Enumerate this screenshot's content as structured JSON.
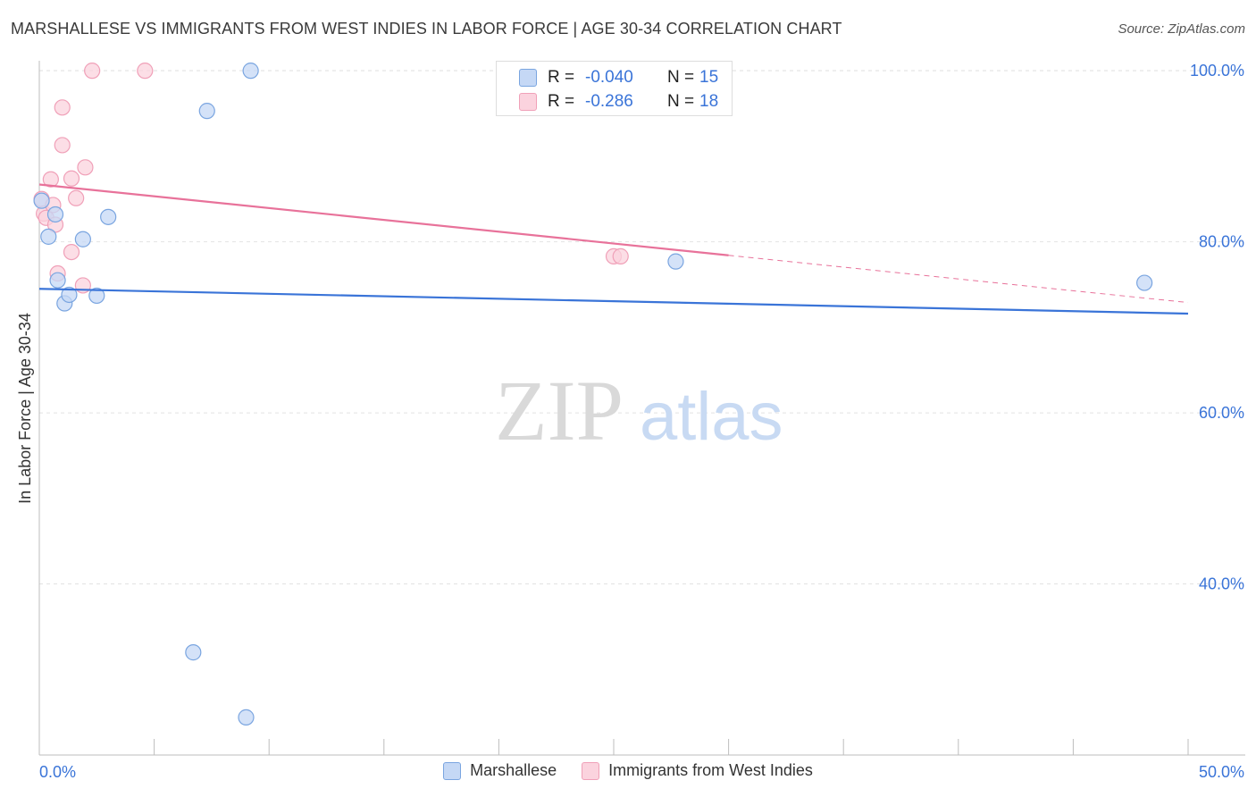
{
  "title": "MARSHALLESE VS IMMIGRANTS FROM WEST INDIES IN LABOR FORCE | AGE 30-34 CORRELATION CHART",
  "source": "Source: ZipAtlas.com",
  "watermark": {
    "zip": "ZIP",
    "atlas": "atlas"
  },
  "stats": [
    {
      "r_label": "R =",
      "r_value": "-0.040",
      "n_label": "N =",
      "n_value": "15",
      "color": "#c5d8f5"
    },
    {
      "r_label": "R =",
      "r_value": "-0.286",
      "n_label": "N =",
      "n_value": "18",
      "color": "#fbd3de"
    }
  ],
  "legend": [
    {
      "label": "Marshallese"
    },
    {
      "label": "Immigrants from West Indies"
    }
  ],
  "chart_data": {
    "type": "scatter",
    "title": "MARSHALLESE VS IMMIGRANTS FROM WEST INDIES IN LABOR FORCE | AGE 30-34 CORRELATION CHART",
    "xlabel": "",
    "ylabel": "In Labor Force | Age 30-34",
    "xlim": [
      0,
      50
    ],
    "ylim": [
      20,
      102
    ],
    "x_ticks": [
      0,
      5,
      10,
      15,
      20,
      25,
      30,
      35,
      40,
      45,
      50
    ],
    "x_tick_labels": [
      {
        "value": 0,
        "label": "0.0%"
      },
      {
        "value": 50,
        "label": "50.0%"
      }
    ],
    "y_tick_labels": [
      {
        "value": 100,
        "label": "100.0%"
      },
      {
        "value": 80,
        "label": "80.0%"
      },
      {
        "value": 60,
        "label": "60.0%"
      },
      {
        "value": 40,
        "label": "40.0%"
      }
    ],
    "grid": true,
    "series": [
      {
        "name": "Marshallese",
        "color": "#3a74d8",
        "fill": "#c5d8f5",
        "points": [
          {
            "x": 0.1,
            "y": 84.8
          },
          {
            "x": 0.4,
            "y": 80.6
          },
          {
            "x": 0.7,
            "y": 83.2
          },
          {
            "x": 0.8,
            "y": 75.5
          },
          {
            "x": 1.1,
            "y": 72.8
          },
          {
            "x": 1.3,
            "y": 73.8
          },
          {
            "x": 1.9,
            "y": 80.3
          },
          {
            "x": 2.5,
            "y": 73.7
          },
          {
            "x": 3.0,
            "y": 82.9
          },
          {
            "x": 7.3,
            "y": 95.3
          },
          {
            "x": 9.2,
            "y": 100.0
          },
          {
            "x": 6.7,
            "y": 32.0
          },
          {
            "x": 9.0,
            "y": 24.4
          },
          {
            "x": 27.7,
            "y": 77.7
          },
          {
            "x": 48.1,
            "y": 75.2
          }
        ],
        "trend": {
          "x0": 0,
          "y0": 74.5,
          "x1": 50,
          "y1": 71.6,
          "dashed_from": null
        }
      },
      {
        "name": "Immigrants from West Indies",
        "color": "#e8729a",
        "fill": "#fbd3de",
        "points": [
          {
            "x": 0.1,
            "y": 85.0
          },
          {
            "x": 0.2,
            "y": 83.3
          },
          {
            "x": 0.3,
            "y": 82.8
          },
          {
            "x": 0.5,
            "y": 87.3
          },
          {
            "x": 0.6,
            "y": 84.3
          },
          {
            "x": 0.7,
            "y": 82.0
          },
          {
            "x": 0.8,
            "y": 76.3
          },
          {
            "x": 1.0,
            "y": 95.7
          },
          {
            "x": 1.0,
            "y": 91.3
          },
          {
            "x": 1.4,
            "y": 87.4
          },
          {
            "x": 1.4,
            "y": 78.8
          },
          {
            "x": 1.6,
            "y": 85.1
          },
          {
            "x": 1.9,
            "y": 74.9
          },
          {
            "x": 2.0,
            "y": 88.7
          },
          {
            "x": 2.3,
            "y": 100.0
          },
          {
            "x": 4.6,
            "y": 100.0
          },
          {
            "x": 25.0,
            "y": 78.3
          },
          {
            "x": 25.3,
            "y": 78.3
          }
        ],
        "trend": {
          "x0": 0,
          "y0": 86.7,
          "x1": 50,
          "y1": 72.9,
          "dashed_from": 30
        }
      }
    ]
  }
}
